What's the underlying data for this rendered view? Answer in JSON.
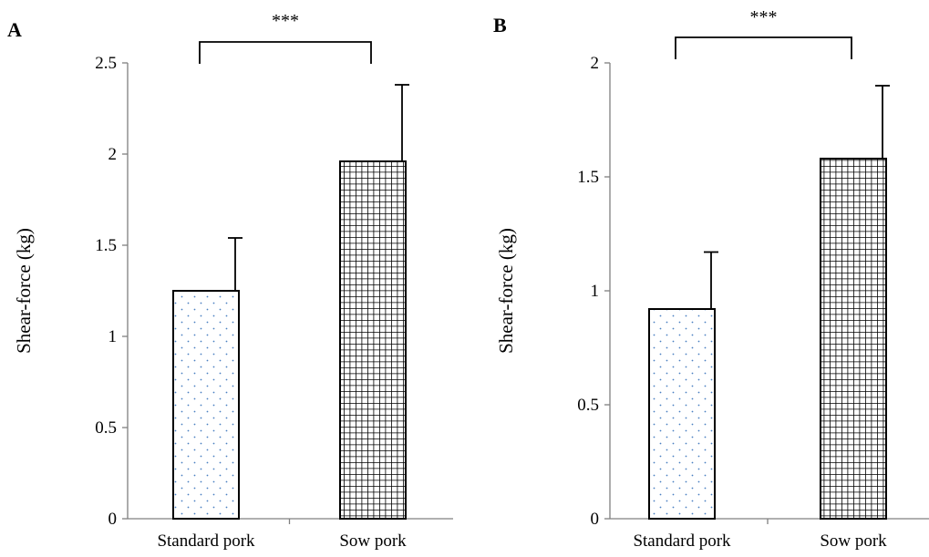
{
  "chart_data": [
    {
      "type": "bar",
      "panel_label": "A",
      "categories": [
        "Standard pork",
        "Sow pork"
      ],
      "values": [
        1.25,
        1.96
      ],
      "error": [
        0.29,
        0.42
      ],
      "ylabel": "Shear-force (kg)",
      "xlabel": "",
      "ylim": [
        0,
        2.5
      ],
      "yticks": [
        "0",
        "0.5",
        "1",
        "1.5",
        "2",
        "2.5"
      ],
      "significance": "***",
      "grid": false,
      "legend": "none"
    },
    {
      "type": "bar",
      "panel_label": "B",
      "categories": [
        "Standard pork",
        "Sow pork"
      ],
      "values": [
        0.92,
        1.58
      ],
      "error": [
        0.25,
        0.32
      ],
      "ylabel": "Shear-force (kg)",
      "xlabel": "",
      "ylim": [
        0,
        2
      ],
      "yticks": [
        "0",
        "0.5",
        "1",
        "1.5",
        "2"
      ],
      "significance": "***",
      "grid": false,
      "legend": "none"
    }
  ],
  "colors": {
    "dot_fill": "#4a7fc1",
    "grid_fill": "#000000",
    "bar_outline": "#000000",
    "axis": "#808080"
  }
}
